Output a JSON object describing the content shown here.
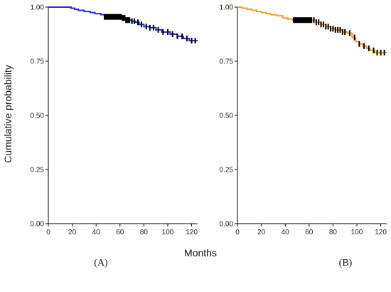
{
  "figure": {
    "ylabel": "Cumulative probability",
    "xlabel": "Months"
  },
  "chart_data": [
    {
      "type": "line",
      "panel_label": "(A)",
      "xlim": [
        0,
        125
      ],
      "ylim": [
        0,
        1
      ],
      "x_ticks": [
        0,
        20,
        40,
        60,
        80,
        100,
        120
      ],
      "y_ticks": [
        "0.00",
        "0.25",
        "0.50",
        "0.75",
        "1.00"
      ],
      "color": "#2b2bd6",
      "censor_color": "#000000",
      "series": [
        {
          "step_points": [
            [
              0,
              1.0
            ],
            [
              16,
              1.0
            ],
            [
              19,
              0.995
            ],
            [
              22,
              0.99
            ],
            [
              25,
              0.985
            ],
            [
              30,
              0.98
            ],
            [
              35,
              0.975
            ],
            [
              39,
              0.97
            ],
            [
              44,
              0.965
            ],
            [
              47,
              0.955
            ],
            [
              56,
              0.955
            ],
            [
              62,
              0.95
            ],
            [
              65,
              0.94
            ],
            [
              70,
              0.935
            ],
            [
              73,
              0.93
            ],
            [
              76,
              0.92
            ],
            [
              80,
              0.91
            ],
            [
              85,
              0.905
            ],
            [
              90,
              0.895
            ],
            [
              95,
              0.885
            ],
            [
              102,
              0.875
            ],
            [
              108,
              0.865
            ],
            [
              113,
              0.855
            ],
            [
              118,
              0.845
            ],
            [
              125,
              0.845
            ]
          ],
          "censor_times": [
            47,
            48,
            49,
            50,
            51,
            52,
            53,
            54,
            55,
            56,
            57,
            58,
            59,
            60,
            61,
            62,
            63,
            64,
            65,
            66,
            67,
            68,
            70,
            72,
            75,
            78,
            82,
            85,
            88,
            92,
            96,
            100,
            104,
            108,
            112,
            116,
            120,
            123
          ]
        }
      ]
    },
    {
      "type": "line",
      "panel_label": "(B)",
      "xlim": [
        0,
        125
      ],
      "ylim": [
        0,
        1
      ],
      "x_ticks": [
        0,
        20,
        40,
        60,
        80,
        100,
        120
      ],
      "y_ticks": [
        "0.00",
        "0.25",
        "0.50",
        "0.75",
        "1.00"
      ],
      "color": "#f5a023",
      "censor_color": "#000000",
      "series": [
        {
          "step_points": [
            [
              0,
              1.0
            ],
            [
              4,
              0.995
            ],
            [
              8,
              0.99
            ],
            [
              12,
              0.985
            ],
            [
              16,
              0.98
            ],
            [
              20,
              0.975
            ],
            [
              24,
              0.97
            ],
            [
              28,
              0.965
            ],
            [
              33,
              0.96
            ],
            [
              38,
              0.95
            ],
            [
              42,
              0.945
            ],
            [
              46,
              0.94
            ],
            [
              62,
              0.94
            ],
            [
              66,
              0.93
            ],
            [
              70,
              0.92
            ],
            [
              74,
              0.91
            ],
            [
              78,
              0.9
            ],
            [
              82,
              0.895
            ],
            [
              88,
              0.885
            ],
            [
              92,
              0.88
            ],
            [
              96,
              0.86
            ],
            [
              99,
              0.84
            ],
            [
              102,
              0.83
            ],
            [
              105,
              0.82
            ],
            [
              108,
              0.81
            ],
            [
              111,
              0.8
            ],
            [
              115,
              0.79
            ],
            [
              125,
              0.79
            ]
          ],
          "censor_times": [
            47,
            48,
            49,
            50,
            51,
            52,
            53,
            54,
            55,
            56,
            57,
            58,
            59,
            60,
            61,
            62,
            64,
            66,
            68,
            70,
            72,
            74,
            76,
            78,
            80,
            82,
            84,
            86,
            88,
            90,
            94,
            98,
            102,
            106,
            110,
            114,
            117,
            120,
            123
          ]
        }
      ]
    }
  ]
}
